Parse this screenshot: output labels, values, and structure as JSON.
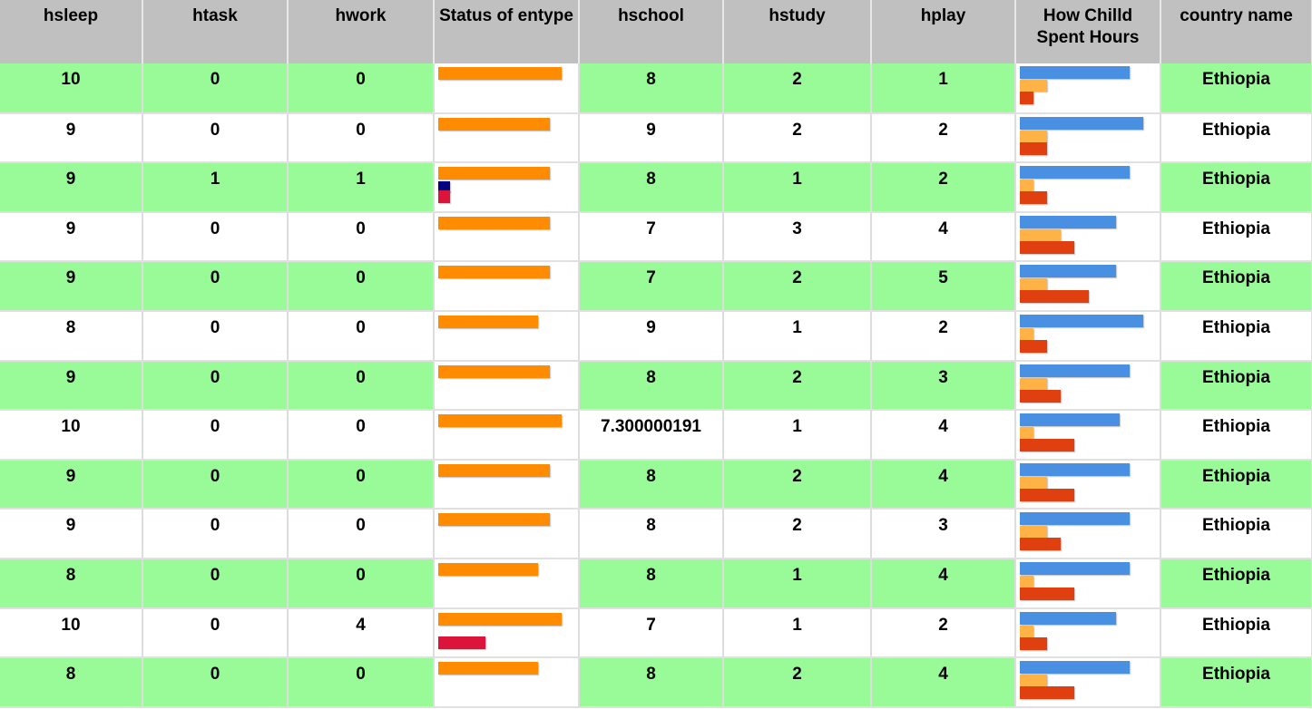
{
  "colors": {
    "header_bg": "#c0c0c0",
    "row_green": "#98fb98",
    "row_white": "#ffffff",
    "status_primary": "#ff8c00",
    "status_navy": "#000080",
    "status_crimson": "#dc143c",
    "hours_blue": "#4a90e2",
    "hours_orange": "#ffb347",
    "hours_red": "#e04010"
  },
  "headers": [
    "hsleep",
    "htask",
    "hwork",
    "Status of entype",
    "hschool",
    "hstudy",
    "hplay",
    "How Chilld Spent Hours",
    "country name"
  ],
  "rows": [
    {
      "hsleep": "10",
      "htask": "0",
      "hwork": "0",
      "hschool": "8",
      "hstudy": "2",
      "hplay": "1",
      "country": "Ethiopia"
    },
    {
      "hsleep": "9",
      "htask": "0",
      "hwork": "0",
      "hschool": "9",
      "hstudy": "2",
      "hplay": "2",
      "country": "Ethiopia"
    },
    {
      "hsleep": "9",
      "htask": "1",
      "hwork": "1",
      "hschool": "8",
      "hstudy": "1",
      "hplay": "2",
      "country": "Ethiopia"
    },
    {
      "hsleep": "9",
      "htask": "0",
      "hwork": "0",
      "hschool": "7",
      "hstudy": "3",
      "hplay": "4",
      "country": "Ethiopia"
    },
    {
      "hsleep": "9",
      "htask": "0",
      "hwork": "0",
      "hschool": "7",
      "hstudy": "2",
      "hplay": "5",
      "country": "Ethiopia"
    },
    {
      "hsleep": "8",
      "htask": "0",
      "hwork": "0",
      "hschool": "9",
      "hstudy": "1",
      "hplay": "2",
      "country": "Ethiopia"
    },
    {
      "hsleep": "9",
      "htask": "0",
      "hwork": "0",
      "hschool": "8",
      "hstudy": "2",
      "hplay": "3",
      "country": "Ethiopia"
    },
    {
      "hsleep": "10",
      "htask": "0",
      "hwork": "0",
      "hschool": "7.300000191",
      "hstudy": "1",
      "hplay": "4",
      "country": "Ethiopia"
    },
    {
      "hsleep": "9",
      "htask": "0",
      "hwork": "0",
      "hschool": "8",
      "hstudy": "2",
      "hplay": "4",
      "country": "Ethiopia"
    },
    {
      "hsleep": "9",
      "htask": "0",
      "hwork": "0",
      "hschool": "8",
      "hstudy": "2",
      "hplay": "3",
      "country": "Ethiopia"
    },
    {
      "hsleep": "8",
      "htask": "0",
      "hwork": "0",
      "hschool": "8",
      "hstudy": "1",
      "hplay": "4",
      "country": "Ethiopia"
    },
    {
      "hsleep": "10",
      "htask": "0",
      "hwork": "4",
      "hschool": "7",
      "hstudy": "1",
      "hplay": "2",
      "country": "Ethiopia"
    },
    {
      "hsleep": "8",
      "htask": "0",
      "hwork": "0",
      "hschool": "8",
      "hstudy": "2",
      "hplay": "4",
      "country": "Ethiopia"
    }
  ],
  "scale": {
    "status_max": 10,
    "hours_max": 9
  }
}
